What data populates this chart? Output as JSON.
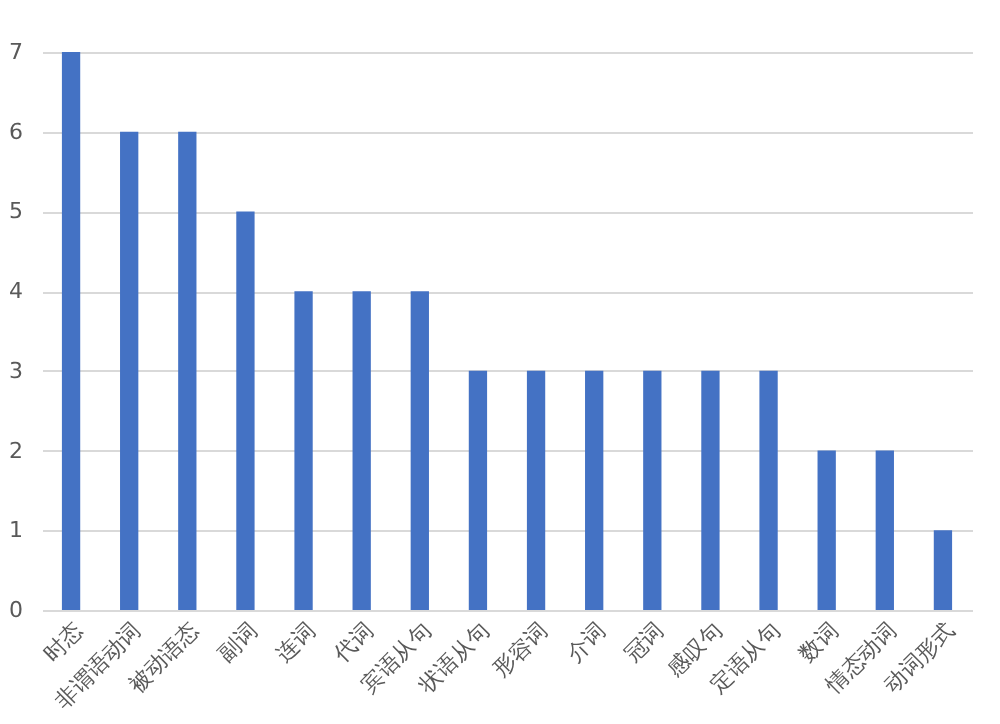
{
  "chart_data": {
    "type": "bar",
    "categories": [
      "时态",
      "非谓语动词",
      "被动语态",
      "副词",
      "连词",
      "代词",
      "宾语从句",
      "状语从句",
      "形容词",
      "介词",
      "冠词",
      "感叹句",
      "定语从句",
      "数词",
      "情态动词",
      "动词形式"
    ],
    "values": [
      7,
      6,
      6,
      5,
      4,
      4,
      4,
      3,
      3,
      3,
      3,
      3,
      3,
      2,
      2,
      1
    ],
    "color": "#4472c4",
    "ylim": [
      0,
      7
    ],
    "yticks": [
      0,
      1,
      2,
      3,
      4,
      5,
      6,
      7
    ],
    "grid": "y"
  }
}
